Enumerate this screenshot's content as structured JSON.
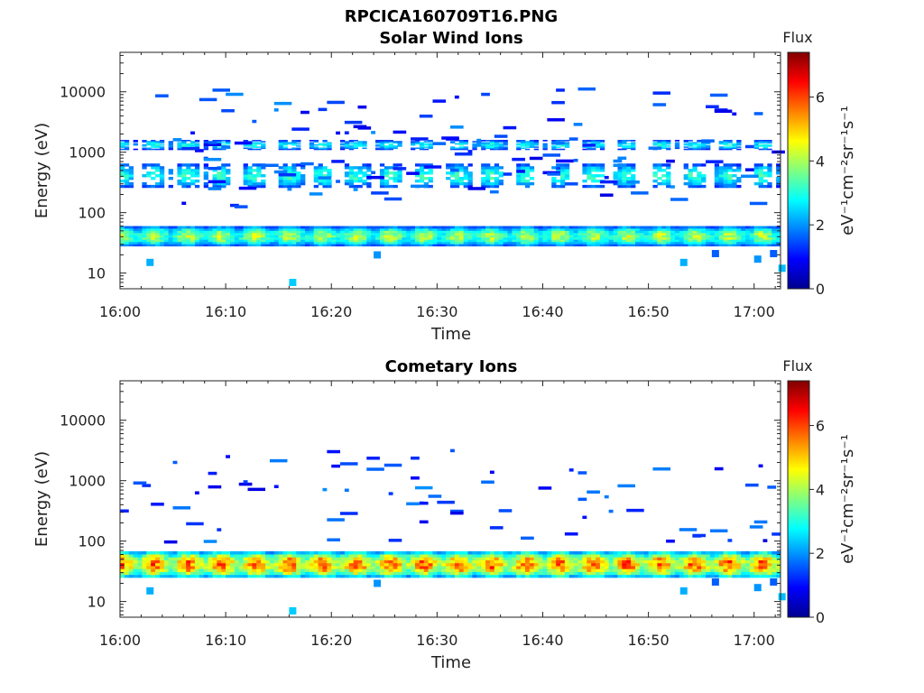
{
  "figure": {
    "title": "RPCICA160709T16.PNG",
    "colorbar_title": "Flux",
    "colorbar_unit": "eV⁻¹cm⁻²sr⁻¹s⁻¹",
    "colorbar_ticks": [
      "0",
      "2",
      "4",
      "6"
    ],
    "colormap": [
      "#00008f",
      "#0000ff",
      "#0080ff",
      "#00ffff",
      "#80ff80",
      "#ffff00",
      "#ff8000",
      "#ff0000",
      "#800000"
    ]
  },
  "chart_data": [
    {
      "type": "heatmap",
      "title": "Solar Wind Ions",
      "xlabel": "Time",
      "ylabel": "Energy (eV)",
      "x_ticks": [
        "16:00",
        "16:10",
        "16:20",
        "16:30",
        "16:40",
        "16:50",
        "17:00"
      ],
      "y_ticks": [
        "10",
        "100",
        "1000",
        "10000"
      ],
      "y_scale": "log",
      "y_range": [
        5.5,
        45000
      ],
      "x_range_minutes": [
        0,
        62.5
      ],
      "color_range": [
        0,
        7.4
      ],
      "bands": [
        {
          "energy_min": 28,
          "energy_max": 60,
          "level": 3.3
        },
        {
          "energy_min": 260,
          "energy_max": 650,
          "level": 2.5
        },
        {
          "energy_min": 1100,
          "energy_max": 1600,
          "level": 2.3
        }
      ]
    },
    {
      "type": "heatmap",
      "title": "Cometary Ions",
      "xlabel": "Time",
      "ylabel": "Energy (eV)",
      "x_ticks": [
        "16:00",
        "16:10",
        "16:20",
        "16:30",
        "16:40",
        "16:50",
        "17:00"
      ],
      "y_ticks": [
        "10",
        "100",
        "1000",
        "10000"
      ],
      "y_scale": "log",
      "y_range": [
        5.5,
        45000
      ],
      "x_range_minutes": [
        0,
        62.5
      ],
      "color_range": [
        0,
        7.4
      ],
      "bands": [
        {
          "energy_min": 25,
          "energy_max": 68,
          "level": 4.6
        }
      ]
    }
  ]
}
